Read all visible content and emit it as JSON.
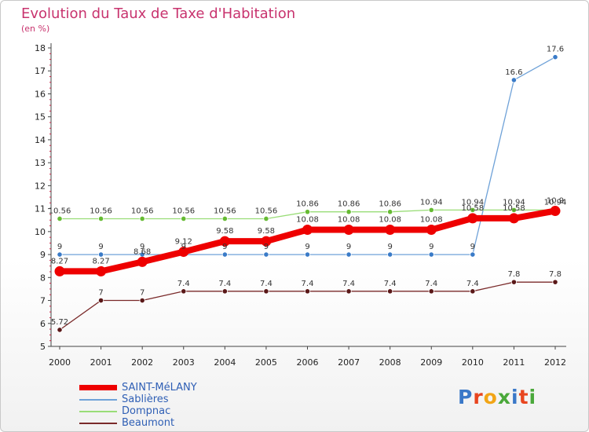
{
  "header": {
    "title": "Evolution du Taux de Taxe d'Habitation",
    "subtitle": "(en %)"
  },
  "branding": {
    "logo_text": "Proxiti"
  },
  "chart_data": {
    "type": "line",
    "title": "Evolution du Taux de Taxe d'Habitation",
    "ylabel": "(en %)",
    "xlabel": "",
    "x": [
      "2000",
      "2001",
      "2002",
      "2003",
      "2004",
      "2005",
      "2006",
      "2007",
      "2008",
      "2009",
      "2010",
      "2011",
      "2012"
    ],
    "ylim": [
      5,
      18
    ],
    "yticks": [
      5,
      6,
      7,
      8,
      9,
      10,
      11,
      12,
      13,
      14,
      15,
      16,
      17,
      18
    ],
    "grid": false,
    "legend_position": "bottom-left",
    "series": [
      {
        "name": "SAINT-MéLANY",
        "color": "#ee0000",
        "highlight": true,
        "values": [
          8.27,
          8.27,
          8.68,
          9.12,
          9.58,
          9.58,
          10.08,
          10.08,
          10.08,
          10.08,
          10.58,
          10.58,
          10.9
        ],
        "labels": [
          "8.27",
          "8.27",
          "8.68",
          "9.12",
          "9.58",
          "9.58",
          "10.08",
          "10.08",
          "10.08",
          "10.08",
          "10.58",
          "10.58",
          "10.9"
        ]
      },
      {
        "name": "Sablières",
        "color": "#6fa2d8",
        "marker": "#3a7bc8",
        "highlight": false,
        "values": [
          9,
          9,
          9,
          9,
          9,
          9,
          9,
          9,
          9,
          9,
          9,
          16.6,
          17.6
        ],
        "labels": [
          "9",
          "9",
          "9",
          "9",
          "9",
          "9",
          "9",
          "9",
          "9",
          "9",
          "9",
          "16.6",
          "17.6"
        ]
      },
      {
        "name": "Dompnac",
        "color": "#99dd77",
        "marker": "#66bb33",
        "highlight": false,
        "values": [
          10.56,
          10.56,
          10.56,
          10.56,
          10.56,
          10.56,
          10.86,
          10.86,
          10.86,
          10.94,
          10.94,
          10.94,
          10.94
        ],
        "labels": [
          "10.56",
          "10.56",
          "10.56",
          "10.56",
          "10.56",
          "10.56",
          "10.86",
          "10.86",
          "10.86",
          "10.94",
          "10.94",
          "10.94",
          "10.94"
        ]
      },
      {
        "name": "Beaumont",
        "color": "#7a2a2a",
        "marker": "#5a1818",
        "highlight": false,
        "values": [
          5.72,
          7,
          7,
          7.4,
          7.4,
          7.4,
          7.4,
          7.4,
          7.4,
          7.4,
          7.4,
          7.8,
          7.8
        ],
        "labels": [
          "5.72",
          "7",
          "7",
          "7.4",
          "7.4",
          "7.4",
          "7.4",
          "7.4",
          "7.4",
          "7.4",
          "7.4",
          "7.8",
          "7.8"
        ]
      }
    ]
  }
}
